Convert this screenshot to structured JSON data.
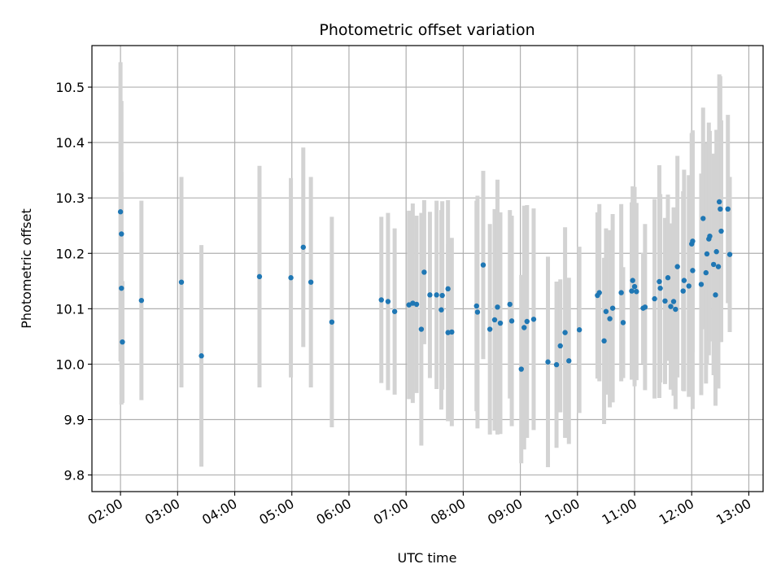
{
  "chart_data": {
    "type": "scatter",
    "title": "Photometric offset variation",
    "xlabel": "UTC time",
    "ylabel": "Photometric offset",
    "x_unit": "UTC hours",
    "xlim": [
      "01:30",
      "13:15"
    ],
    "ylim": [
      9.77,
      10.575
    ],
    "grid": true,
    "x_tick_labels": [
      "02:00",
      "03:00",
      "04:00",
      "05:00",
      "06:00",
      "07:00",
      "08:00",
      "09:00",
      "10:00",
      "11:00",
      "12:00",
      "13:00"
    ],
    "y_tick_labels": [
      "9.8",
      "9.9",
      "10.0",
      "10.1",
      "10.2",
      "10.3",
      "10.4",
      "10.5"
    ],
    "y_ticks": [
      9.8,
      9.9,
      10.0,
      10.1,
      10.2,
      10.3,
      10.4,
      10.5
    ],
    "colors": {
      "points": "#1f77b4",
      "error_bars": "#d3d3d3",
      "grid": "#b0b0b0"
    },
    "points": [
      [
        "02:00",
        10.275,
        0.27
      ],
      [
        "02:01",
        10.235,
        0.24
      ],
      [
        "02:01",
        10.137,
        0.21
      ],
      [
        "02:02",
        10.04,
        0.11
      ],
      [
        "02:22",
        10.115,
        0.18
      ],
      [
        "03:04",
        10.148,
        0.19
      ],
      [
        "03:25",
        10.015,
        0.2
      ],
      [
        "04:26",
        10.158,
        0.2
      ],
      [
        "04:59",
        10.156,
        0.18
      ],
      [
        "05:12",
        10.211,
        0.18
      ],
      [
        "05:20",
        10.148,
        0.19
      ],
      [
        "05:42",
        10.076,
        0.19
      ],
      [
        "06:34",
        10.116,
        0.15
      ],
      [
        "06:41",
        10.113,
        0.16
      ],
      [
        "06:48",
        10.095,
        0.15
      ],
      [
        "07:03",
        10.107,
        0.17
      ],
      [
        "07:07",
        10.11,
        0.18
      ],
      [
        "07:11",
        10.108,
        0.16
      ],
      [
        "07:16",
        10.063,
        0.21
      ],
      [
        "07:19",
        10.166,
        0.13
      ],
      [
        "07:25",
        10.125,
        0.15
      ],
      [
        "07:32",
        10.125,
        0.17
      ],
      [
        "07:37",
        10.098,
        0.18
      ],
      [
        "07:38",
        10.124,
        0.17
      ],
      [
        "07:44",
        10.136,
        0.16
      ],
      [
        "07:44",
        10.057,
        0.16
      ],
      [
        "07:48",
        10.058,
        0.17
      ],
      [
        "08:14",
        10.105,
        0.19
      ],
      [
        "08:15",
        10.094,
        0.21
      ],
      [
        "08:21",
        10.179,
        0.17
      ],
      [
        "08:28",
        10.063,
        0.19
      ],
      [
        "08:33",
        10.08,
        0.2
      ],
      [
        "08:36",
        10.103,
        0.23
      ],
      [
        "08:39",
        10.074,
        0.2
      ],
      [
        "08:49",
        10.108,
        0.17
      ],
      [
        "08:51",
        10.078,
        0.19
      ],
      [
        "09:01",
        9.991,
        0.17
      ],
      [
        "09:04",
        10.066,
        0.22
      ],
      [
        "09:07",
        10.077,
        0.21
      ],
      [
        "09:14",
        10.081,
        0.2
      ],
      [
        "09:29",
        10.004,
        0.19
      ],
      [
        "09:38",
        9.999,
        0.15
      ],
      [
        "09:42",
        10.033,
        0.12
      ],
      [
        "09:47",
        10.057,
        0.19
      ],
      [
        "09:51",
        10.006,
        0.15
      ],
      [
        "10:02",
        10.062,
        0.15
      ],
      [
        "10:21",
        10.124,
        0.15
      ],
      [
        "10:23",
        10.129,
        0.16
      ],
      [
        "10:28",
        10.042,
        0.15
      ],
      [
        "10:30",
        10.095,
        0.15
      ],
      [
        "10:34",
        10.082,
        0.16
      ],
      [
        "10:37",
        10.101,
        0.17
      ],
      [
        "10:46",
        10.129,
        0.16
      ],
      [
        "10:48",
        10.075,
        0.1
      ],
      [
        "10:57",
        10.132,
        0.16
      ],
      [
        "10:58",
        10.151,
        0.17
      ],
      [
        "11:00",
        10.14,
        0.18
      ],
      [
        "11:02",
        10.131,
        0.16
      ],
      [
        "11:09",
        10.101,
        0.1
      ],
      [
        "11:11",
        10.103,
        0.15
      ],
      [
        "11:21",
        10.118,
        0.18
      ],
      [
        "11:26",
        10.149,
        0.21
      ],
      [
        "11:27",
        10.137,
        0.17
      ],
      [
        "11:32",
        10.114,
        0.15
      ],
      [
        "11:35",
        10.156,
        0.15
      ],
      [
        "11:38",
        10.104,
        0.15
      ],
      [
        "11:41",
        10.113,
        0.17
      ],
      [
        "11:43",
        10.099,
        0.18
      ],
      [
        "11:45",
        10.176,
        0.2
      ],
      [
        "11:51",
        10.132,
        0.18
      ],
      [
        "11:52",
        10.151,
        0.2
      ],
      [
        "11:57",
        10.141,
        0.2
      ],
      [
        "12:00",
        10.217,
        0.2
      ],
      [
        "12:01",
        10.222,
        0.2
      ],
      [
        "12:01",
        10.169,
        0.25
      ],
      [
        "12:10",
        10.144,
        0.2
      ],
      [
        "12:12",
        10.263,
        0.2
      ],
      [
        "12:15",
        10.165,
        0.2
      ],
      [
        "12:16",
        10.199,
        0.2
      ],
      [
        "12:18",
        10.226,
        0.21
      ],
      [
        "12:19",
        10.231,
        0.19
      ],
      [
        "12:23",
        10.18,
        0.2
      ],
      [
        "12:25",
        10.125,
        0.2
      ],
      [
        "12:26",
        10.203,
        0.22
      ],
      [
        "12:28",
        10.176,
        0.22
      ],
      [
        "12:29",
        10.293,
        0.23
      ],
      [
        "12:30",
        10.28,
        0.24
      ],
      [
        "12:31",
        10.24,
        0.2
      ],
      [
        "12:38",
        10.28,
        0.17
      ],
      [
        "12:40",
        10.198,
        0.14
      ]
    ]
  }
}
